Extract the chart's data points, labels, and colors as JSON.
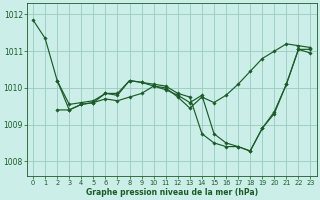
{
  "bg_color": "#cceee8",
  "grid_color": "#99ccbb",
  "line_color": "#1a5c28",
  "xlabel": "Graphe pression niveau de la mer (hPa)",
  "ylim": [
    1007.6,
    1012.3
  ],
  "xlim": [
    -0.5,
    23.5
  ],
  "yticks": [
    1008,
    1009,
    1010,
    1011,
    1012
  ],
  "xticks": [
    0,
    1,
    2,
    3,
    4,
    5,
    6,
    7,
    8,
    9,
    10,
    11,
    12,
    13,
    14,
    15,
    16,
    17,
    18,
    19,
    20,
    21,
    22,
    23
  ],
  "series": [
    {
      "x": [
        0,
        1,
        2,
        3,
        4,
        5,
        6,
        7,
        8,
        9,
        10,
        11,
        12,
        13,
        14,
        15,
        16,
        17,
        18,
        19,
        20,
        21,
        22,
        23
      ],
      "y": [
        1011.85,
        1011.35,
        1010.2,
        1009.4,
        1009.55,
        1009.6,
        1009.85,
        1009.8,
        1010.2,
        1010.15,
        1010.1,
        1010.05,
        1009.85,
        1009.75,
        1008.75,
        1008.5,
        1008.4,
        1008.4,
        1008.28,
        1008.9,
        1009.3,
        1010.1,
        1011.05,
        1011.05
      ]
    },
    {
      "x": [
        2,
        3,
        4,
        5,
        6,
        7,
        8,
        9,
        10,
        11,
        12,
        13,
        14,
        15,
        16,
        17,
        18,
        19,
        20,
        21,
        22,
        23
      ],
      "y": [
        1010.2,
        1009.55,
        1009.6,
        1009.65,
        1009.85,
        1009.85,
        1010.2,
        1010.15,
        1010.05,
        1009.95,
        1009.8,
        1009.6,
        1009.8,
        1008.75,
        1008.5,
        1008.4,
        1008.28,
        1008.9,
        1009.35,
        1010.1,
        1011.05,
        1010.95
      ]
    },
    {
      "x": [
        2,
        3,
        4,
        5,
        6,
        7,
        8,
        9,
        10,
        11,
        12,
        13,
        14,
        15,
        16,
        17,
        18,
        19,
        20,
        21,
        22,
        23
      ],
      "y": [
        1009.4,
        1009.4,
        1009.55,
        1009.6,
        1009.7,
        1009.65,
        1009.75,
        1009.85,
        1010.05,
        1010.0,
        1009.75,
        1009.45,
        1009.75,
        1009.6,
        1009.8,
        1010.1,
        1010.45,
        1010.8,
        1011.0,
        1011.2,
        1011.15,
        1011.1
      ]
    }
  ]
}
